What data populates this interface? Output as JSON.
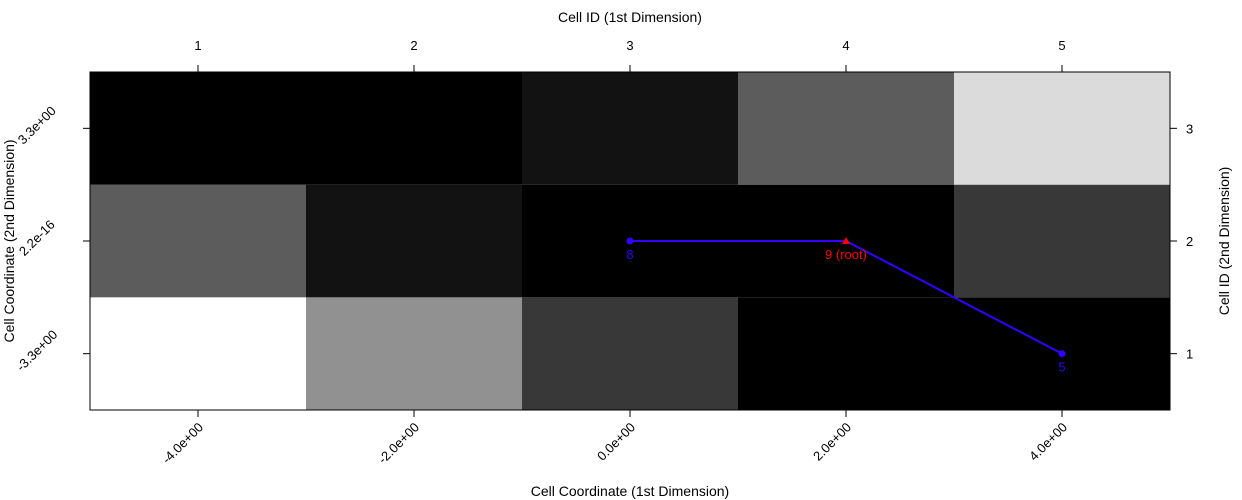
{
  "chart_data": {
    "type": "heatmap",
    "title": "",
    "colormap": "grayscale",
    "x_bottom": {
      "label": "Cell Coordinate (1st Dimension)",
      "ticks": [
        "-4.0e+00",
        "-2.0e+00",
        "0.0e+00",
        "2.0e+00",
        "4.0e+00"
      ],
      "tick_values": [
        -4,
        -2,
        0,
        2,
        4
      ]
    },
    "x_top": {
      "label": "Cell ID (1st Dimension)",
      "ticks": [
        "1",
        "2",
        "3",
        "4",
        "5"
      ]
    },
    "y_left": {
      "label": "Cell Coordinate (2nd Dimension)",
      "ticks": [
        "-3.3e+00",
        "2.2e-16",
        "3.3e+00"
      ],
      "tick_values": [
        -3.3,
        0,
        3.3
      ]
    },
    "y_right": {
      "label": "Cell ID (2nd Dimension)",
      "ticks": [
        "1",
        "2",
        "3"
      ]
    },
    "grid": false,
    "cells": [
      [
        1.0,
        0.57,
        0.22,
        0.0,
        0.0
      ],
      [
        0.36,
        0.07,
        0.0,
        0.0,
        0.22
      ],
      [
        0.0,
        0.0,
        0.07,
        0.36,
        0.86
      ]
    ],
    "cells_row_order": "row 1 = bottom (cell id 1), row 3 = top (cell id 3); value = brightness 0 black to 1 white",
    "tree": {
      "color": "#3300ff",
      "root_color": "#ff0000",
      "nodes": [
        {
          "id": "8",
          "label": "8",
          "x": 0,
          "y": 0,
          "root": false
        },
        {
          "id": "9",
          "label": "9 (root)",
          "x": 2,
          "y": 0,
          "root": true
        },
        {
          "id": "5",
          "label": "5",
          "x": 4,
          "y": -3.3,
          "root": false
        }
      ],
      "edges": [
        [
          "8",
          "9"
        ],
        [
          "9",
          "5"
        ]
      ]
    }
  }
}
